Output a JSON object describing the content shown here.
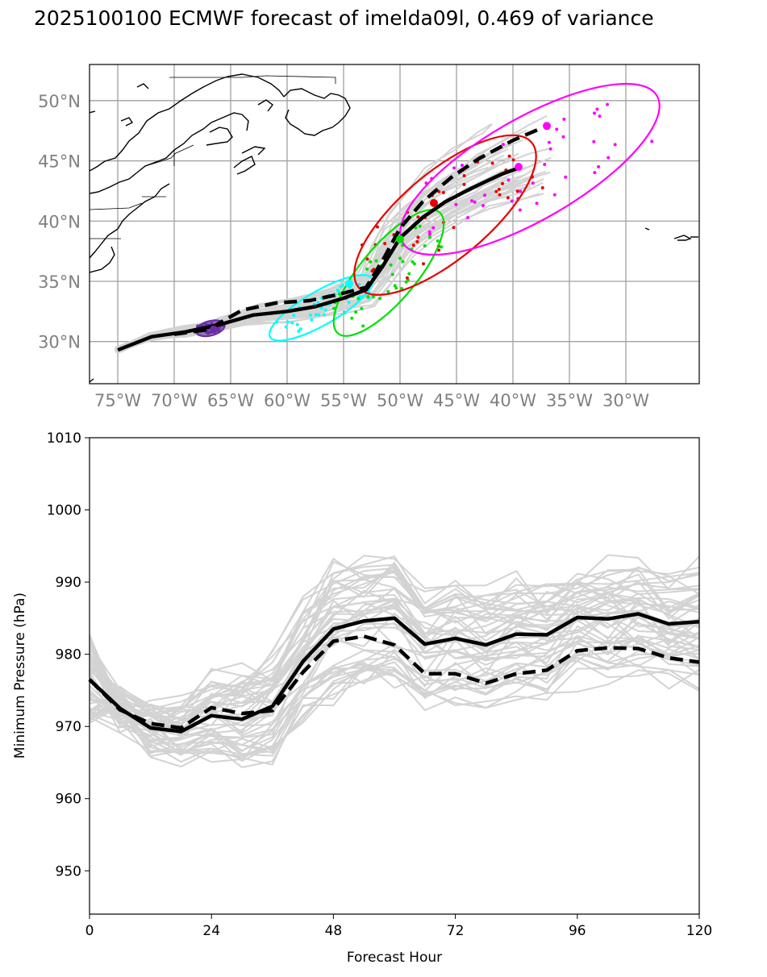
{
  "title": "2025100100 ECMWF forecast of imelda09l, 0.469 of variance",
  "chart_data": [
    {
      "type": "map",
      "name": "track-map",
      "x_range_lon": [
        -77.5,
        -23.5
      ],
      "y_range_lat": [
        26.5,
        53.0
      ],
      "xticks": [
        -75,
        -70,
        -65,
        -60,
        -55,
        -50,
        -45,
        -40,
        -35,
        -30
      ],
      "xtick_labels": [
        "75°W",
        "70°W",
        "65°W",
        "60°W",
        "55°W",
        "50°W",
        "45°W",
        "40°W",
        "35°W",
        "30°W"
      ],
      "yticks": [
        30,
        35,
        40,
        45,
        50
      ],
      "ytick_labels": [
        "30°N",
        "35°N",
        "40°N",
        "45°N",
        "50°N"
      ],
      "grid": true,
      "mean_track_solid": [
        [
          -75.0,
          29.3
        ],
        [
          -72.0,
          30.4
        ],
        [
          -69.0,
          30.8
        ],
        [
          -66.0,
          31.4
        ],
        [
          -63.0,
          32.2
        ],
        [
          -60.0,
          32.5
        ],
        [
          -57.5,
          32.9
        ],
        [
          -55.0,
          33.6
        ],
        [
          -53.0,
          34.3
        ],
        [
          -51.5,
          36.3
        ],
        [
          -50.0,
          38.6
        ],
        [
          -48.0,
          40.3
        ],
        [
          -46.0,
          41.6
        ],
        [
          -43.5,
          42.8
        ],
        [
          -41.0,
          43.9
        ],
        [
          -39.5,
          44.4
        ]
      ],
      "mean_track_dashed": [
        [
          -70.0,
          30.6
        ],
        [
          -67.0,
          31.0
        ],
        [
          -64.0,
          32.6
        ],
        [
          -61.0,
          33.2
        ],
        [
          -58.0,
          33.4
        ],
        [
          -55.5,
          33.9
        ],
        [
          -53.0,
          34.5
        ],
        [
          -51.5,
          36.8
        ],
        [
          -50.0,
          39.4
        ],
        [
          -48.0,
          41.6
        ],
        [
          -45.5,
          43.6
        ],
        [
          -43.0,
          45.2
        ],
        [
          -40.0,
          46.7
        ],
        [
          -37.5,
          47.7
        ]
      ],
      "ellipses": [
        {
          "color": "#6a2ba3",
          "center": [
            -66.8,
            31.1
          ],
          "semi_axes_deg": [
            1.3,
            0.6
          ],
          "angle_deg": 15
        },
        {
          "color": "#00ffff",
          "center": [
            -57.0,
            32.8
          ],
          "semi_axes_deg": [
            5.2,
            1.4
          ],
          "angle_deg": 30
        },
        {
          "color": "#00e000",
          "center": [
            -51.0,
            35.7
          ],
          "semi_axes_deg": [
            7.0,
            2.3
          ],
          "angle_deg": 50
        },
        {
          "color": "#e60000",
          "center": [
            -46.0,
            40.5
          ],
          "semi_axes_deg": [
            10.0,
            3.6
          ],
          "angle_deg": 40
        },
        {
          "color": "#ff00ff",
          "center": [
            -38.5,
            44.3
          ],
          "semi_axes_deg": [
            13.0,
            4.2
          ],
          "angle_deg": 30
        }
      ],
      "markers": [
        {
          "color": "#ff00ff",
          "lon": -37.0,
          "lat": 47.9
        },
        {
          "color": "#ff00ff",
          "lon": -39.5,
          "lat": 44.5
        },
        {
          "color": "#e60000",
          "lon": -47.0,
          "lat": 41.5
        },
        {
          "color": "#00e000",
          "lon": -50.0,
          "lat": 38.5
        },
        {
          "color": "#00ffff",
          "lon": -54.5,
          "lat": 34.8
        },
        {
          "color": "#6a2ba3",
          "lon": -66.5,
          "lat": 31.0
        }
      ]
    },
    {
      "type": "line",
      "name": "pressure-chart",
      "xlabel": "Forecast Hour",
      "ylabel": "Minimum Pressure (hPa)",
      "xlim": [
        0,
        120
      ],
      "ylim": [
        944,
        1010
      ],
      "xticks": [
        0,
        24,
        48,
        72,
        96,
        120
      ],
      "yticks": [
        950,
        960,
        970,
        980,
        990,
        1000,
        1010
      ],
      "x": [
        0,
        6,
        12,
        18,
        24,
        30,
        36,
        42,
        48,
        54,
        60,
        66,
        72,
        78,
        84,
        90,
        96,
        102,
        108,
        114,
        120
      ],
      "series": [
        {
          "name": "ensemble-mean",
          "style": "solid",
          "color": "#000000",
          "values": [
            976.5,
            972.5,
            969.8,
            969.3,
            971.5,
            971.0,
            972.8,
            979.0,
            983.5,
            984.6,
            985.0,
            981.4,
            982.2,
            981.3,
            982.8,
            982.7,
            985.1,
            984.9,
            985.6,
            984.2,
            984.5
          ]
        },
        {
          "name": "deterministic",
          "style": "dashed",
          "color": "#000000",
          "values": [
            976.5,
            972.3,
            970.4,
            969.8,
            972.6,
            971.8,
            972.2,
            977.5,
            981.8,
            982.5,
            981.3,
            977.3,
            977.3,
            976.0,
            977.3,
            977.8,
            980.5,
            980.9,
            980.8,
            979.5,
            978.9
          ]
        }
      ],
      "members_color": "#d3d3d3"
    }
  ]
}
